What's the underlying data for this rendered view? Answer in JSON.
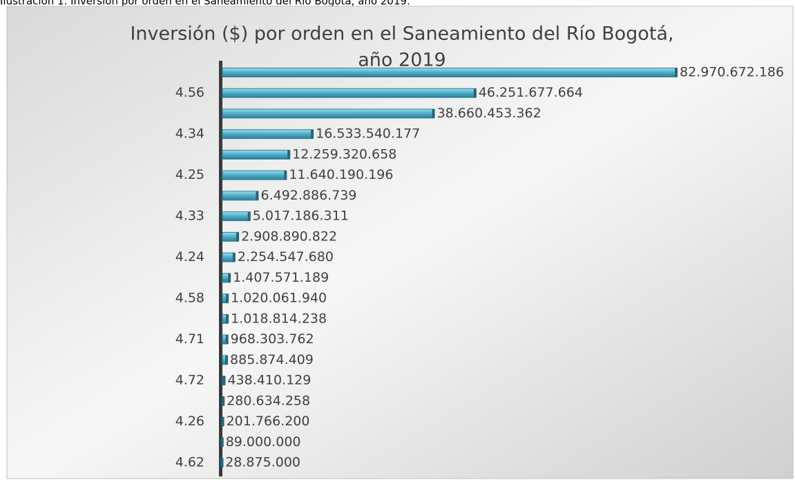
{
  "caption": "Ilustración 1. Inversión por orden en el Saneamiento del Río Bogotá, año 2019.",
  "chart_data": {
    "type": "bar",
    "orientation": "horizontal",
    "title": "Inversión ($) por orden en el Saneamiento del Río Bogotá, año 2019",
    "categories": [
      null,
      "4.56",
      null,
      "4.34",
      null,
      "4.25",
      null,
      "4.33",
      null,
      "4.24",
      null,
      "4.58",
      null,
      "4.71",
      null,
      "4.72",
      null,
      "4.26",
      null,
      "4.62"
    ],
    "values": [
      82970672186,
      46251677664,
      38660453362,
      16533540177,
      12259320658,
      11640190196,
      6492886739,
      5017186311,
      2908890822,
      2254547680,
      1407571189,
      1020061940,
      1018814238,
      968303762,
      885874409,
      438410129,
      280634258,
      201766200,
      89000000,
      28875000
    ],
    "value_labels": [
      "82.970.672.186",
      "46.251.677.664",
      "38.660.453.362",
      "16.533.540.177",
      "12.259.320.658",
      "11.640.190.196",
      "6.492.886.739",
      "5.017.186.311",
      "2.908.890.822",
      "2.254.547.680",
      "1.407.571.189",
      "1.020.061.940",
      "1.018.814.238",
      "968.303.762",
      "885.874.409",
      "438.410.129",
      "280.634.258",
      "201.766.200",
      "89.000.000",
      "28.875.000"
    ],
    "color": "#4bacc6"
  }
}
